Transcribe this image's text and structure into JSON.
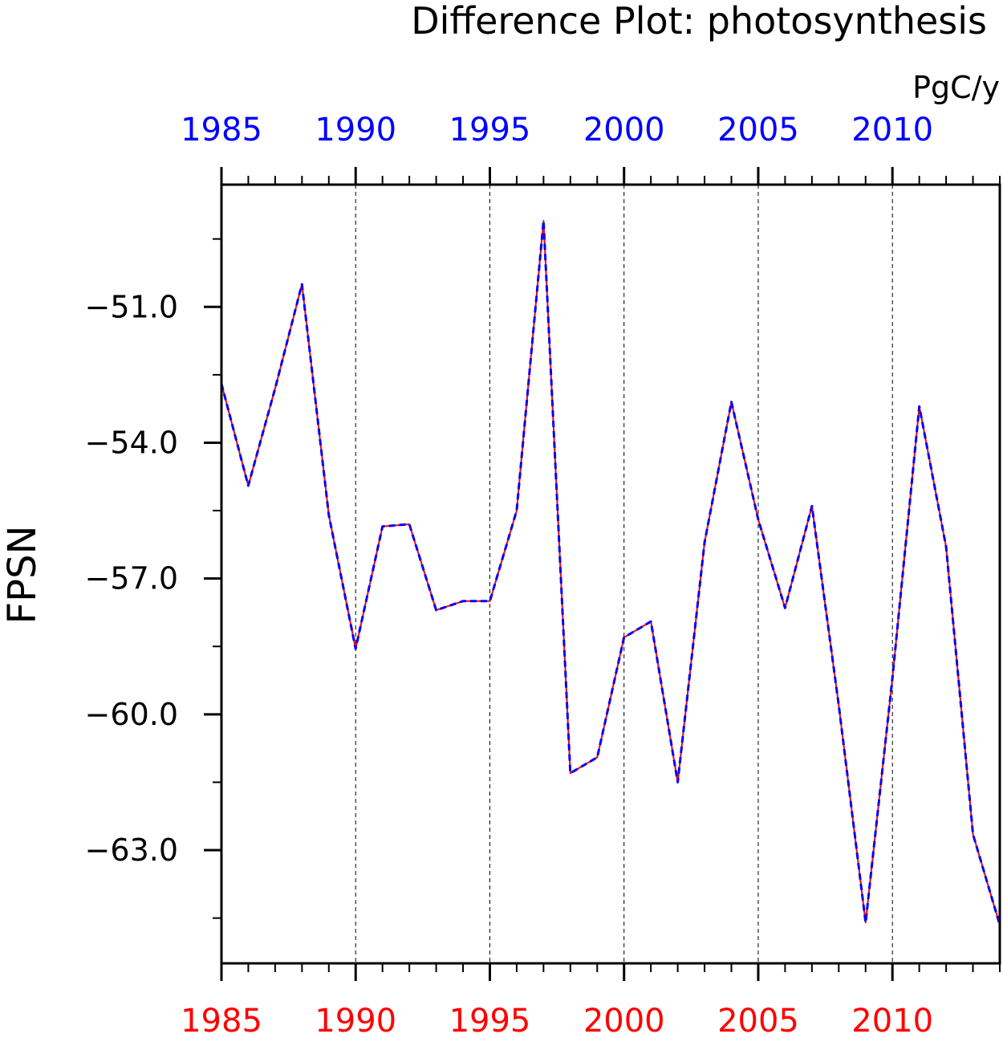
{
  "chart_data": {
    "type": "line",
    "title": "Difference Plot: photosynthesis",
    "units": "PgC/y",
    "ylabel": "FPSN",
    "xlabel": "",
    "xlim": [
      1985,
      2014
    ],
    "ylim": [
      -65.5,
      -48.3
    ],
    "x_ticks": [
      "1985",
      "1990",
      "1995",
      "2000",
      "2005",
      "2010"
    ],
    "x_tick_values": [
      1985,
      1990,
      1995,
      2000,
      2005,
      2010
    ],
    "y_ticks": [
      "-51.0",
      "-54.0",
      "-57.0",
      "-60.0",
      "-63.0"
    ],
    "y_tick_values": [
      -51.0,
      -54.0,
      -57.0,
      -60.0,
      -63.0
    ],
    "x_tick_colors": {
      "top": "#0000ff",
      "bottom": "#ff0000"
    },
    "grid": "vertical dashed at major x ticks",
    "x": [
      1985,
      1986,
      1987,
      1988,
      1989,
      1990,
      1991,
      1992,
      1993,
      1994,
      1995,
      1996,
      1997,
      1998,
      1999,
      2000,
      2001,
      2002,
      2003,
      2004,
      2005,
      2006,
      2007,
      2008,
      2009,
      2010,
      2011,
      2012,
      2013,
      2014
    ],
    "series": [
      {
        "color": "#ff0000",
        "style": "solid",
        "values": [
          -52.7,
          -54.95,
          -52.8,
          -50.5,
          -55.6,
          -58.55,
          -55.85,
          -55.8,
          -57.7,
          -57.5,
          -57.5,
          -55.5,
          -49.1,
          -61.3,
          -60.95,
          -58.3,
          -57.95,
          -61.5,
          -56.2,
          -53.1,
          -55.7,
          -57.65,
          -55.4,
          -59.8,
          -64.6,
          -59.2,
          -53.2,
          -56.3,
          -62.65,
          -64.65
        ]
      },
      {
        "color": "#0000ff",
        "style": "dashed",
        "values": [
          -52.7,
          -54.95,
          -52.8,
          -50.5,
          -55.6,
          -58.55,
          -55.85,
          -55.8,
          -57.7,
          -57.5,
          -57.5,
          -55.5,
          -49.1,
          -61.3,
          -60.95,
          -58.3,
          -57.95,
          -61.5,
          -56.2,
          -53.1,
          -55.7,
          -57.65,
          -55.4,
          -59.8,
          -64.6,
          -59.2,
          -53.2,
          -56.3,
          -62.65,
          -64.65
        ]
      }
    ]
  }
}
